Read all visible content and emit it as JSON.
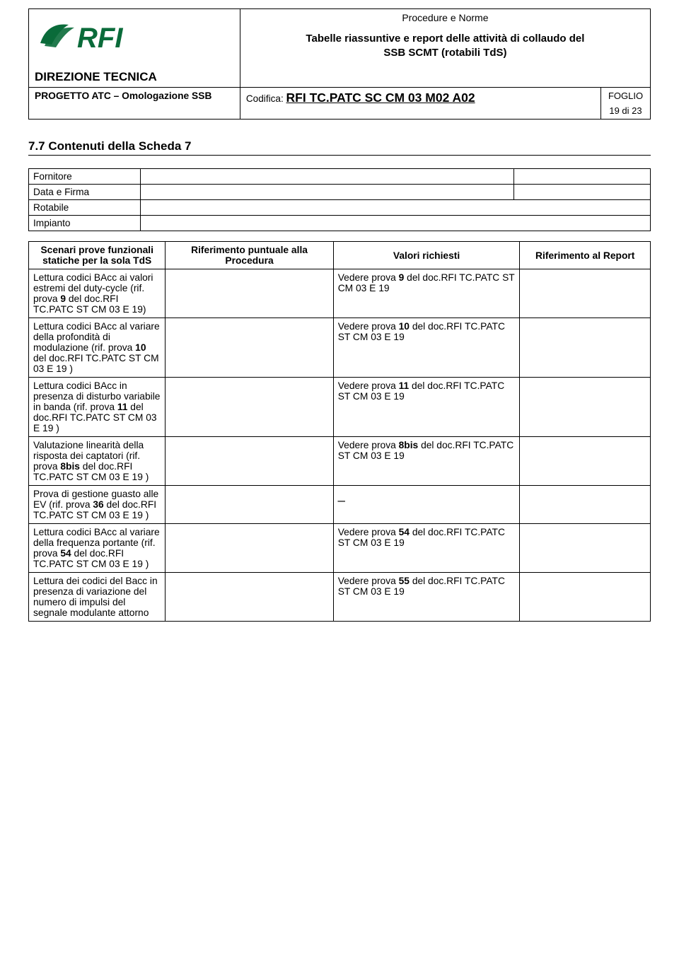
{
  "header": {
    "logo_text": "RFI",
    "direzione": "DIREZIONE TECNICA",
    "progetto": "PROGETTO ATC – Omologazione SSB",
    "procedure_e_norme": "Procedure e Norme",
    "tabelle_line1": "Tabelle riassuntive e report delle attività di collaudo del",
    "tabelle_line2": "SSB SCMT (rotabili TdS)",
    "codifica_label": "Codifica:",
    "codifica_value": "RFI TC.PATC SC CM 03 M02 A02",
    "foglio_label": "FOGLIO",
    "foglio_value": "19 di 23"
  },
  "section_title": "7.7 Contenuti della Scheda 7",
  "meta": {
    "fornitore": "Fornitore",
    "data_firma": "Data e Firma",
    "rotabile": "Rotabile",
    "impianto": "Impianto"
  },
  "table_headers": {
    "scenari": "Scenari prove funzionali statiche per la sola TdS",
    "rif_proc": "Riferimento puntuale alla Procedura",
    "valori": "Valori richiesti",
    "rif_report": "Riferimento al Report"
  },
  "rows": [
    {
      "scenari": {
        "pre": "Lettura codici BAcc ai valori estremi del duty-cycle (rif. prova ",
        "bold": "9",
        "post": " del doc.RFI TC.PATC ST CM 03 E 19)"
      },
      "valori": {
        "pre": "Vedere prova ",
        "bold": "9",
        "post": " del doc.RFI TC.PATC ST CM 03 E 19"
      }
    },
    {
      "scenari": {
        "pre": "Lettura codici BAcc al variare della profondità di modulazione (rif. prova ",
        "bold": "10",
        "post": " del doc.RFI TC.PATC ST CM 03 E 19 )"
      },
      "valori": {
        "pre": "Vedere prova ",
        "bold": "10",
        "post": " del doc.RFI TC.PATC ST CM 03 E 19"
      }
    },
    {
      "scenari": {
        "pre": "Lettura codici BAcc in presenza di disturbo variabile in banda (rif. prova ",
        "bold": "11",
        "post": " del doc.RFI TC.PATC ST CM 03 E 19 )"
      },
      "valori": {
        "pre": "Vedere prova ",
        "bold": "11",
        "post": " del doc.RFI TC.PATC ST CM 03 E 19"
      }
    },
    {
      "scenari": {
        "pre": "Valutazione linearità della risposta dei captatori (rif. prova ",
        "bold": "8bis",
        "post": " del doc.RFI TC.PATC ST CM 03 E 19 )"
      },
      "valori": {
        "pre": "Vedere prova ",
        "bold": "8bis",
        "post": " del doc.RFI TC.PATC ST CM 03 E 19"
      }
    },
    {
      "scenari": {
        "pre": "Prova di gestione guasto alle EV (rif. prova ",
        "bold": "36",
        "post": " del doc.RFI TC.PATC ST CM 03 E 19 )"
      },
      "valori": {
        "dash": "_"
      }
    },
    {
      "scenari": {
        "pre": "Lettura codici BAcc al variare della frequenza portante (rif. prova ",
        "bold": "54",
        "post": " del doc.RFI TC.PATC ST CM 03 E 19 )"
      },
      "valori": {
        "pre": "Vedere prova ",
        "bold": "54",
        "post": " del doc.RFI TC.PATC ST CM 03 E 19"
      }
    },
    {
      "scenari": {
        "pre": "Lettura dei codici del Bacc in presenza di variazione del numero di impulsi del segnale modulante attorno",
        "bold": "",
        "post": ""
      },
      "valori": {
        "pre": "Vedere prova ",
        "bold": "55",
        "post": " del doc.RFI TC.PATC ST CM 03 E 19"
      }
    }
  ]
}
